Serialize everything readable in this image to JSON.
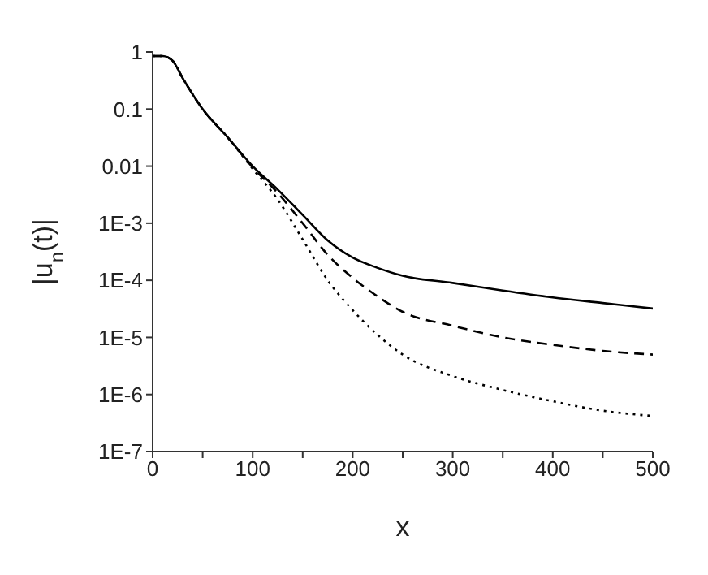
{
  "chart_data": {
    "type": "line",
    "xlabel": "x",
    "ylabel": "|u$_{n}$(t)|",
    "log": "y",
    "marker": "none",
    "x": [
      0,
      10,
      20,
      30,
      50,
      75,
      100,
      125,
      150,
      175,
      200,
      225,
      250,
      300,
      350,
      400,
      450,
      500
    ],
    "xlim": [
      0,
      500
    ],
    "xticks": [
      0,
      {
        "value": 50,
        "label": null
      },
      100,
      {
        "value": 150,
        "label": null
      },
      200,
      {
        "value": 250,
        "label": null
      },
      300,
      {
        "value": 350,
        "label": null
      },
      400,
      {
        "value": 450,
        "label": null
      },
      500
    ],
    "ylim": [
      1e-07,
      1
    ],
    "yticks": [
      1,
      0.1,
      0.01,
      {
        "value": 0.001,
        "label": "1E-3"
      },
      {
        "value": 0.0001,
        "label": "1E-4"
      },
      {
        "value": 1e-05,
        "label": "1E-5"
      },
      {
        "value": 1e-06,
        "label": "1E-6"
      },
      {
        "value": 1e-07,
        "label": "1E-7"
      }
    ],
    "series": [
      {
        "color": "#000000",
        "line_style": "solid",
        "values": [
          0.85,
          0.85,
          0.7,
          0.35,
          0.1,
          0.032,
          0.01,
          0.0039,
          0.0014,
          0.0005,
          0.00025,
          0.000165,
          0.00012,
          9e-05,
          6.6e-05,
          5e-05,
          4e-05,
          3.2e-05
        ]
      },
      {
        "color": "#000000",
        "line_style": "dashed",
        "values": [
          0.85,
          0.85,
          0.7,
          0.35,
          0.1,
          0.032,
          0.0095,
          0.0034,
          0.001,
          0.00028,
          0.00011,
          5.2e-05,
          2.8e-05,
          1.6e-05,
          1e-05,
          7.4e-06,
          5.8e-06,
          5e-06
        ]
      },
      {
        "color": "#000000",
        "line_style": "dotted",
        "values": [
          0.85,
          0.85,
          0.7,
          0.35,
          0.1,
          0.032,
          0.009,
          0.0026,
          0.00052,
          0.0001,
          3e-05,
          1.1e-05,
          5e-06,
          2.1e-06,
          1.2e-06,
          7.6e-07,
          5.2e-07,
          4.2e-07
        ]
      }
    ]
  }
}
